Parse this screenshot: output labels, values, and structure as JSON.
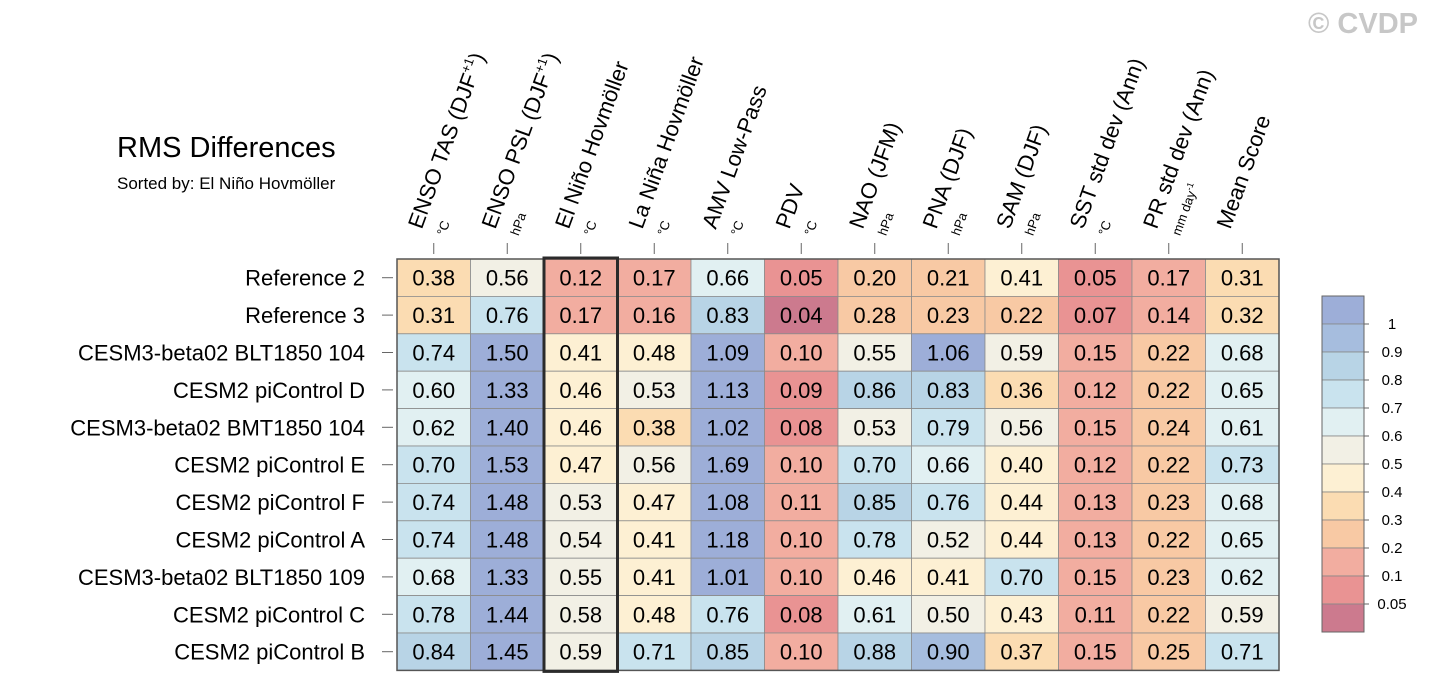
{
  "watermark": "© CVDP",
  "chart_data": {
    "type": "heatmap",
    "title": "RMS Differences",
    "subtitle": "Sorted by: El Niño Hovmöller",
    "sorted_by_column": "El Niño Hovmöller",
    "columns": [
      {
        "label": "ENSO TAS (DJF",
        "sup": "+1",
        "close": ")",
        "unit": "°C"
      },
      {
        "label": "ENSO PSL (DJF",
        "sup": "+1",
        "close": ")",
        "unit": "hPa"
      },
      {
        "label": "El Niño Hovmöller",
        "sup": "",
        "close": "",
        "unit": "°C"
      },
      {
        "label": "La Niña Hovmöller",
        "sup": "",
        "close": "",
        "unit": "°C"
      },
      {
        "label": "AMV Low-Pass",
        "sup": "",
        "close": "",
        "unit": "°C"
      },
      {
        "label": "PDV",
        "sup": "",
        "close": "",
        "unit": "°C"
      },
      {
        "label": "NAO (JFM)",
        "sup": "",
        "close": "",
        "unit": "hPa"
      },
      {
        "label": "PNA (DJF)",
        "sup": "",
        "close": "",
        "unit": "hPa"
      },
      {
        "label": "SAM (DJF)",
        "sup": "",
        "close": "",
        "unit": "hPa"
      },
      {
        "label": "SST std dev (Ann)",
        "sup": "",
        "close": "",
        "unit": "°C"
      },
      {
        "label": "PR std dev (Ann)",
        "sup": "",
        "close": "",
        "unit": "mm day-1"
      },
      {
        "label": "Mean Score",
        "sup": "",
        "close": "",
        "unit": ""
      }
    ],
    "rows": [
      {
        "name": "Reference 2",
        "values": [
          0.38,
          0.56,
          0.12,
          0.17,
          0.66,
          0.05,
          0.2,
          0.21,
          0.41,
          0.05,
          0.17,
          0.31
        ]
      },
      {
        "name": "Reference 3",
        "values": [
          0.31,
          0.76,
          0.17,
          0.16,
          0.83,
          0.04,
          0.28,
          0.23,
          0.22,
          0.07,
          0.14,
          0.32
        ]
      },
      {
        "name": "CESM3-beta02 BLT1850 104",
        "values": [
          0.74,
          1.5,
          0.41,
          0.48,
          1.09,
          0.1,
          0.55,
          1.06,
          0.59,
          0.15,
          0.22,
          0.68
        ]
      },
      {
        "name": "CESM2 piControl D",
        "values": [
          0.6,
          1.33,
          0.46,
          0.53,
          1.13,
          0.09,
          0.86,
          0.83,
          0.36,
          0.12,
          0.22,
          0.65
        ]
      },
      {
        "name": "CESM3-beta02 BMT1850 104",
        "values": [
          0.62,
          1.4,
          0.46,
          0.38,
          1.02,
          0.08,
          0.53,
          0.79,
          0.56,
          0.15,
          0.24,
          0.61
        ]
      },
      {
        "name": "CESM2 piControl E",
        "values": [
          0.7,
          1.53,
          0.47,
          0.56,
          1.69,
          0.1,
          0.7,
          0.66,
          0.4,
          0.12,
          0.22,
          0.73
        ]
      },
      {
        "name": "CESM2 piControl F",
        "values": [
          0.74,
          1.48,
          0.53,
          0.47,
          1.08,
          0.11,
          0.85,
          0.76,
          0.44,
          0.13,
          0.23,
          0.68
        ]
      },
      {
        "name": "CESM2 piControl A",
        "values": [
          0.74,
          1.48,
          0.54,
          0.41,
          1.18,
          0.1,
          0.78,
          0.52,
          0.44,
          0.13,
          0.22,
          0.65
        ]
      },
      {
        "name": "CESM3-beta02 BLT1850 109",
        "values": [
          0.68,
          1.33,
          0.55,
          0.41,
          1.01,
          0.1,
          0.46,
          0.41,
          0.7,
          0.15,
          0.23,
          0.62
        ]
      },
      {
        "name": "CESM2 piControl C",
        "values": [
          0.78,
          1.44,
          0.58,
          0.48,
          0.76,
          0.08,
          0.61,
          0.5,
          0.43,
          0.11,
          0.22,
          0.59
        ]
      },
      {
        "name": "CESM2 piControl B",
        "values": [
          0.84,
          1.45,
          0.59,
          0.71,
          0.85,
          0.1,
          0.88,
          0.9,
          0.37,
          0.15,
          0.25,
          0.71
        ]
      }
    ],
    "colorbar": {
      "labels": [
        "1",
        "0.9",
        "0.8",
        "0.7",
        "0.6",
        "0.5",
        "0.4",
        "0.3",
        "0.2",
        "0.1",
        "0.05"
      ],
      "bounds": [
        0.05,
        0.1,
        0.2,
        0.3,
        0.4,
        0.5,
        0.6,
        0.7,
        0.8,
        0.9,
        1
      ],
      "colors": [
        "#cc7a8e",
        "#e99393",
        "#f2ada0",
        "#f8c9a4",
        "#fbdcb2",
        "#fdf0d3",
        "#f2f0e5",
        "#e1f0f2",
        "#c9e3ee",
        "#b8d4e6",
        "#a6bdde",
        "#9daed8"
      ]
    }
  }
}
